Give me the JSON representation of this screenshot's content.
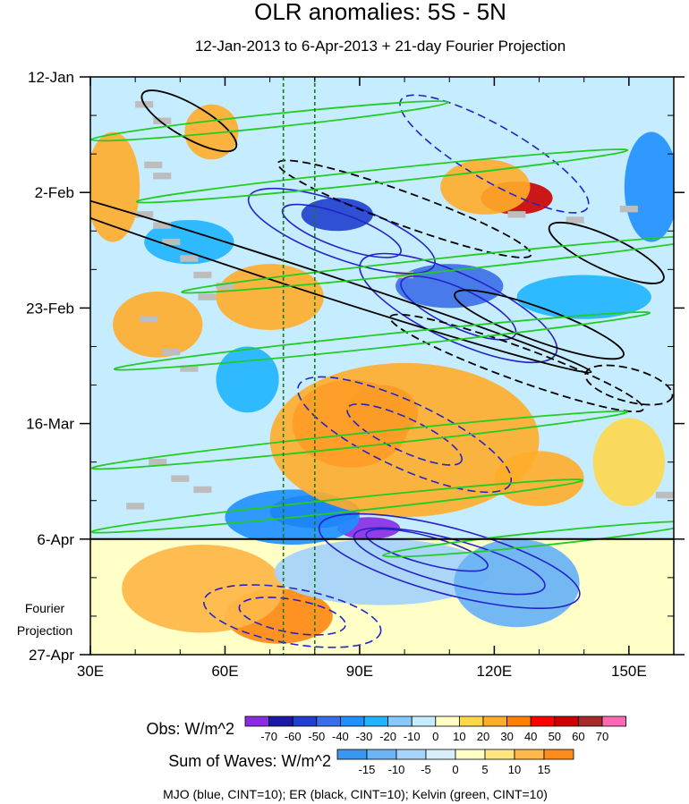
{
  "chart_data": {
    "type": "heatmap",
    "title": "OLR anomalies: 5S - 5N",
    "subtitle": "12-Jan-2013 to 6-Apr-2013 + 21-day Fourier Projection",
    "x_axis": {
      "range": [
        30,
        160
      ],
      "ticks": [
        30,
        60,
        90,
        120,
        150
      ],
      "tick_labels": [
        "30E",
        "60E",
        "90E",
        "120E",
        "150E"
      ]
    },
    "y_axis": {
      "range_days": [
        0,
        105
      ],
      "tick_days": [
        0,
        21,
        42,
        63,
        84,
        105
      ],
      "tick_labels": [
        "12-Jan",
        "2-Feb",
        "23-Feb",
        "16-Mar",
        "6-Apr",
        "27-Apr"
      ],
      "observed_end_day": 84,
      "projection_label": [
        "Fourier",
        "Projection"
      ]
    },
    "reference_lines_lon": [
      73,
      80
    ],
    "obs_colorbar": {
      "title": "Obs: W/m^2",
      "levels": [
        "-70",
        "-60",
        "-50",
        "-40",
        "-30",
        "-20",
        "-10",
        "0",
        "10",
        "20",
        "30",
        "40",
        "50",
        "60",
        "70"
      ],
      "colors": [
        "#8b2be2",
        "#1a1aa6",
        "#1f3fcf",
        "#3a6ee8",
        "#1e90ff",
        "#1eb4ff",
        "#87c8ff",
        "#c6ecff",
        "#ffffc4",
        "#ffd84a",
        "#ffad2a",
        "#ff7f00",
        "#ff0000",
        "#cc0000",
        "#a52a2a",
        "#ff69b4"
      ]
    },
    "waves_colorbar": {
      "title": "Sum of Waves: W/m^2",
      "levels": [
        "-15",
        "-10",
        "-5",
        "0",
        "5",
        "10",
        "15"
      ],
      "colors": [
        "#3a96f0",
        "#6cb4f6",
        "#a6d4fa",
        "#d7eefc",
        "#ffffc8",
        "#ffe680",
        "#ffb84a",
        "#ff8c1a"
      ]
    },
    "footer": "MJO (blue, CINT=10); ER (black, CINT=10); Kelvin (green, CINT=10)",
    "series": [
      {
        "name": "MJO",
        "color": "#2323c8",
        "cint": 10
      },
      {
        "name": "ER",
        "color": "#000000",
        "cint": 10
      },
      {
        "name": "Kelvin",
        "color": "#22cc22",
        "cint": 10
      }
    ],
    "obs_blobs": [
      {
        "lon": 88,
        "day": 63,
        "rx": 13,
        "ry": 8,
        "level": 12
      },
      {
        "lon": 95,
        "day": 61,
        "rx": 8,
        "ry": 5,
        "level": 13
      },
      {
        "lon": 125,
        "day": 22,
        "rx": 8,
        "ry": 3,
        "level": 13
      },
      {
        "lon": 80,
        "day": 79,
        "rx": 10,
        "ry": 3,
        "level": 1
      },
      {
        "lon": 92,
        "day": 82,
        "rx": 7,
        "ry": 2,
        "level": 0
      },
      {
        "lon": 85,
        "day": 25,
        "rx": 8,
        "ry": 3,
        "level": 2
      },
      {
        "lon": 110,
        "day": 38,
        "rx": 12,
        "ry": 4,
        "level": 3
      },
      {
        "lon": 75,
        "day": 80,
        "rx": 15,
        "ry": 5,
        "level": 4
      },
      {
        "lon": 100,
        "day": 66,
        "rx": 30,
        "ry": 14,
        "level": 10
      },
      {
        "lon": 70,
        "day": 40,
        "rx": 12,
        "ry": 6,
        "level": 10
      },
      {
        "lon": 45,
        "day": 45,
        "rx": 10,
        "ry": 6,
        "level": 10
      },
      {
        "lon": 35,
        "day": 20,
        "rx": 6,
        "ry": 10,
        "level": 10
      },
      {
        "lon": 130,
        "day": 73,
        "rx": 10,
        "ry": 5,
        "level": 10
      },
      {
        "lon": 118,
        "day": 20,
        "rx": 10,
        "ry": 5,
        "level": 10
      },
      {
        "lon": 57,
        "day": 10,
        "rx": 6,
        "ry": 5,
        "level": 10
      },
      {
        "lon": 150,
        "day": 70,
        "rx": 8,
        "ry": 8,
        "level": 9
      },
      {
        "lon": 52,
        "day": 30,
        "rx": 10,
        "ry": 4,
        "level": 5
      },
      {
        "lon": 65,
        "day": 55,
        "rx": 7,
        "ry": 6,
        "level": 5
      },
      {
        "lon": 140,
        "day": 40,
        "rx": 15,
        "ry": 4,
        "level": 5
      },
      {
        "lon": 155,
        "day": 20,
        "rx": 6,
        "ry": 10,
        "level": 4
      }
    ],
    "proj_blobs": [
      {
        "lon": 72,
        "day": 98,
        "rx": 12,
        "ry": 5,
        "level": 7
      },
      {
        "lon": 55,
        "day": 93,
        "rx": 18,
        "ry": 8,
        "level": 6
      },
      {
        "lon": 95,
        "day": 90,
        "rx": 24,
        "ry": 6,
        "level": 2
      },
      {
        "lon": 125,
        "day": 92,
        "rx": 14,
        "ry": 8,
        "level": 1
      }
    ],
    "mjo_contours": [
      {
        "lon": 86,
        "day": 28,
        "rx": 22,
        "ry": 5,
        "angle": 20,
        "dashed": false
      },
      {
        "lon": 86,
        "day": 28,
        "rx": 14,
        "ry": 3,
        "angle": 20,
        "dashed": false
      },
      {
        "lon": 112,
        "day": 42,
        "rx": 24,
        "ry": 6,
        "angle": 25,
        "dashed": false
      },
      {
        "lon": 112,
        "day": 42,
        "rx": 14,
        "ry": 3.5,
        "angle": 25,
        "dashed": false
      },
      {
        "lon": 110,
        "day": 88,
        "rx": 30,
        "ry": 6,
        "angle": 15,
        "dashed": false
      },
      {
        "lon": 110,
        "day": 88,
        "rx": 22,
        "ry": 4,
        "angle": 15,
        "dashed": false
      },
      {
        "lon": 105,
        "day": 86,
        "rx": 14,
        "ry": 2.5,
        "angle": 15,
        "dashed": false
      },
      {
        "lon": 100,
        "day": 65,
        "rx": 26,
        "ry": 6,
        "angle": 25,
        "dashed": true
      },
      {
        "lon": 100,
        "day": 65,
        "rx": 14,
        "ry": 3,
        "angle": 25,
        "dashed": true
      },
      {
        "lon": 75,
        "day": 98,
        "rx": 20,
        "ry": 5,
        "angle": 10,
        "dashed": true
      },
      {
        "lon": 75,
        "day": 98,
        "rx": 12,
        "ry": 3,
        "angle": 10,
        "dashed": true
      },
      {
        "lon": 120,
        "day": 14,
        "rx": 24,
        "ry": 5,
        "angle": 30,
        "dashed": true
      }
    ],
    "er_contours": [
      {
        "lon": 52,
        "day": 8,
        "rx": 12,
        "ry": 3,
        "angle": 30,
        "dashed": false
      },
      {
        "lon": 130,
        "day": 45,
        "rx": 20,
        "ry": 3,
        "angle": 20,
        "dashed": false
      },
      {
        "lon": 145,
        "day": 32,
        "rx": 14,
        "ry": 3,
        "angle": 25,
        "dashed": false
      },
      {
        "lon": 75,
        "day": 36,
        "rx": 70,
        "ry": 2,
        "angle": 18,
        "dashed": false
      },
      {
        "lon": 100,
        "day": 24,
        "rx": 30,
        "ry": 3,
        "angle": 20,
        "dashed": true
      },
      {
        "lon": 125,
        "day": 52,
        "rx": 30,
        "ry": 3,
        "angle": 20,
        "dashed": true
      },
      {
        "lon": 150,
        "day": 56,
        "rx": 10,
        "ry": 3,
        "angle": 15,
        "dashed": true
      }
    ],
    "kelvin_contours": [
      {
        "lon": 70,
        "day": 8,
        "rx": 40,
        "ry": 1.2,
        "angle": -6,
        "dashed": false
      },
      {
        "lon": 95,
        "day": 18,
        "rx": 55,
        "ry": 1.2,
        "angle": -6,
        "dashed": false
      },
      {
        "lon": 110,
        "day": 34,
        "rx": 60,
        "ry": 1.2,
        "angle": -6,
        "dashed": false
      },
      {
        "lon": 95,
        "day": 48,
        "rx": 60,
        "ry": 1.2,
        "angle": -6,
        "dashed": false
      },
      {
        "lon": 90,
        "day": 66,
        "rx": 60,
        "ry": 1.2,
        "angle": -6,
        "dashed": false
      },
      {
        "lon": 85,
        "day": 78,
        "rx": 55,
        "ry": 1.2,
        "angle": -6,
        "dashed": false
      },
      {
        "lon": 130,
        "day": 84,
        "rx": 35,
        "ry": 1.2,
        "angle": -6,
        "dashed": false
      }
    ],
    "missing_cells": [
      {
        "lon": 42,
        "day": 5
      },
      {
        "lon": 46,
        "day": 8
      },
      {
        "lon": 44,
        "day": 16
      },
      {
        "lon": 46,
        "day": 18
      },
      {
        "lon": 42,
        "day": 25
      },
      {
        "lon": 46,
        "day": 27
      },
      {
        "lon": 48,
        "day": 30
      },
      {
        "lon": 52,
        "day": 33
      },
      {
        "lon": 55,
        "day": 36
      },
      {
        "lon": 60,
        "day": 38
      },
      {
        "lon": 56,
        "day": 40
      },
      {
        "lon": 43,
        "day": 44
      },
      {
        "lon": 48,
        "day": 50
      },
      {
        "lon": 52,
        "day": 53
      },
      {
        "lon": 45,
        "day": 70
      },
      {
        "lon": 50,
        "day": 73
      },
      {
        "lon": 55,
        "day": 75
      },
      {
        "lon": 40,
        "day": 78
      },
      {
        "lon": 100,
        "day": 36
      },
      {
        "lon": 125,
        "day": 25
      },
      {
        "lon": 138,
        "day": 26
      },
      {
        "lon": 150,
        "day": 24
      },
      {
        "lon": 158,
        "day": 76
      }
    ]
  }
}
